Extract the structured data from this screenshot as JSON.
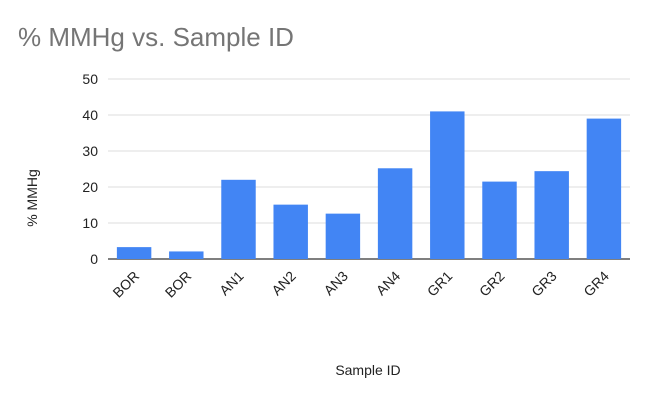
{
  "chart_data": {
    "type": "bar",
    "title": "% MMHg vs. Sample ID",
    "xlabel": "Sample ID",
    "ylabel": "% MMHg",
    "categories": [
      "BOR",
      "BOR",
      "AN1",
      "AN2",
      "AN3",
      "AN4",
      "GR1",
      "GR2",
      "GR3",
      "GR4"
    ],
    "series": [
      {
        "values": [
          3.3,
          2.1,
          22,
          15.1,
          12.6,
          25.2,
          41,
          21.5,
          24.4,
          39
        ]
      }
    ],
    "ylim": [
      0,
      50
    ],
    "yticks": [
      0,
      10,
      20,
      30,
      40,
      50
    ],
    "grid": true,
    "legend": "none",
    "colors": {
      "bar": "#4285F4",
      "grid": "#DDDDDD",
      "axis": "#333333"
    }
  }
}
